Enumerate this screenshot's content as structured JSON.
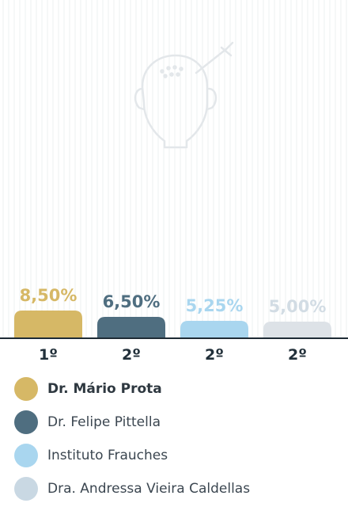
{
  "chart_data": {
    "type": "bar",
    "categories": [
      "Dr. Mário Prota",
      "Dr. Felipe Pittella",
      "Instituto Frauches",
      "Dra. Andressa Vieira Caldellas"
    ],
    "values": [
      8.5,
      6.5,
      5.25,
      5.0
    ],
    "value_labels": [
      "8,50%",
      "6,50%",
      "5,25%",
      "5,00%"
    ],
    "rank_labels": [
      "1º",
      "2º",
      "2º",
      "2º"
    ],
    "colors": [
      "#d6b866",
      "#4f6e80",
      "#a9d6ef",
      "#dde2e7"
    ],
    "label_colors": [
      "#d6b866",
      "#4f6e80",
      "#a9d6ef",
      "#d2dce4"
    ],
    "legend_colors": [
      "#d6b866",
      "#4f6e80",
      "#a9d6ef",
      "#c9d8e3"
    ],
    "legend_bold": [
      true,
      false,
      false,
      false
    ]
  },
  "icons": {
    "background": "hair-transplant-head-icon"
  }
}
